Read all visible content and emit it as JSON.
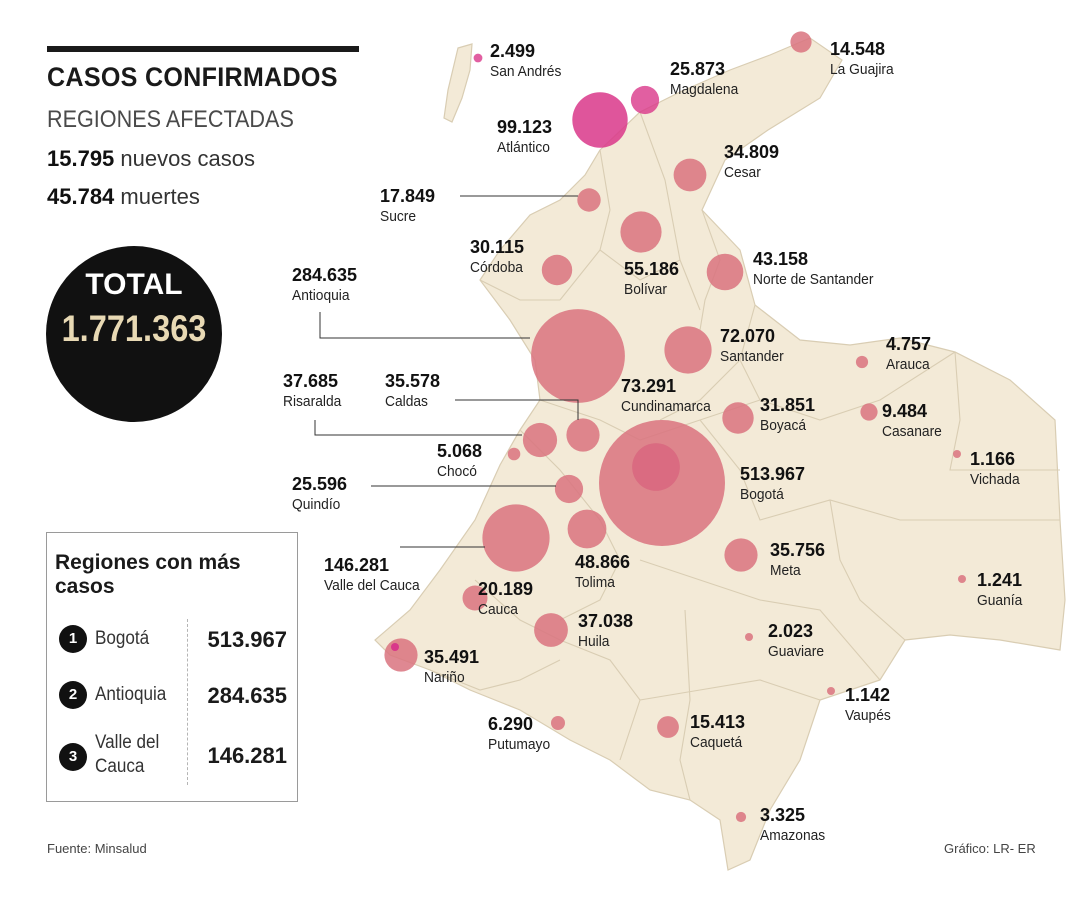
{
  "header": {
    "title": "CASOS CONFIRMADOS",
    "subtitle": "REGIONES AFECTADAS",
    "new_cases_value": "15.795",
    "new_cases_label": "nuevos casos",
    "deaths_value": "45.784",
    "deaths_label": "muertes"
  },
  "total": {
    "label": "TOTAL",
    "value": "1.771.363"
  },
  "top_regions": {
    "title": "Regiones con más casos",
    "items": [
      {
        "rank": "1",
        "name": "Bogotá",
        "value": "513.967"
      },
      {
        "rank": "2",
        "name": "Antioquia",
        "value": "284.635"
      },
      {
        "rank": "3",
        "name": "Valle del Cauca",
        "value": "146.281"
      }
    ]
  },
  "footer": {
    "source": "Fuente: Minsalud",
    "credit": "Gráfico: LR- ER"
  },
  "colors": {
    "land": "#f3ead7",
    "border": "#d9cdb3",
    "bubble": "#d9737f",
    "bubble_highlight": "#d9378a",
    "text": "#111111"
  },
  "chart_data": {
    "type": "bubble-map",
    "title": "CASOS CONFIRMADOS",
    "units": "casos confirmados",
    "regions": [
      {
        "name": "San Andrés",
        "value": "2.499",
        "cases": 2499
      },
      {
        "name": "La Guajira",
        "value": "14.548",
        "cases": 14548
      },
      {
        "name": "Magdalena",
        "value": "25.873",
        "cases": 25873
      },
      {
        "name": "Atlántico",
        "value": "99.123",
        "cases": 99123
      },
      {
        "name": "Cesar",
        "value": "34.809",
        "cases": 34809
      },
      {
        "name": "Sucre",
        "value": "17.849",
        "cases": 17849
      },
      {
        "name": "Córdoba",
        "value": "30.115",
        "cases": 30115
      },
      {
        "name": "Bolívar",
        "value": "55.186",
        "cases": 55186
      },
      {
        "name": "Norte de Santander",
        "value": "43.158",
        "cases": 43158
      },
      {
        "name": "Antioquia",
        "value": "284.635",
        "cases": 284635
      },
      {
        "name": "Santander",
        "value": "72.070",
        "cases": 72070
      },
      {
        "name": "Arauca",
        "value": "4.757",
        "cases": 4757
      },
      {
        "name": "Risaralda",
        "value": "37.685",
        "cases": 37685
      },
      {
        "name": "Caldas",
        "value": "35.578",
        "cases": 35578
      },
      {
        "name": "Cundinamarca",
        "value": "73.291",
        "cases": 73291
      },
      {
        "name": "Boyacá",
        "value": "31.851",
        "cases": 31851
      },
      {
        "name": "Casanare",
        "value": "9.484",
        "cases": 9484
      },
      {
        "name": "Chocó",
        "value": "5.068",
        "cases": 5068
      },
      {
        "name": "Vichada",
        "value": "1.166",
        "cases": 1166
      },
      {
        "name": "Quindío",
        "value": "25.596",
        "cases": 25596
      },
      {
        "name": "Bogotá",
        "value": "513.967",
        "cases": 513967
      },
      {
        "name": "Valle del Cauca",
        "value": "146.281",
        "cases": 146281
      },
      {
        "name": "Tolima",
        "value": "48.866",
        "cases": 48866
      },
      {
        "name": "Meta",
        "value": "35.756",
        "cases": 35756
      },
      {
        "name": "Guanía",
        "value": "1.241",
        "cases": 1241
      },
      {
        "name": "Cauca",
        "value": "20.189",
        "cases": 20189
      },
      {
        "name": "Huila",
        "value": "37.038",
        "cases": 37038
      },
      {
        "name": "Guaviare",
        "value": "2.023",
        "cases": 2023
      },
      {
        "name": "Nariño",
        "value": "35.491",
        "cases": 35491
      },
      {
        "name": "Vaupés",
        "value": "1.142",
        "cases": 1142
      },
      {
        "name": "Putumayo",
        "value": "6.290",
        "cases": 6290
      },
      {
        "name": "Caquetá",
        "value": "15.413",
        "cases": 15413
      },
      {
        "name": "Amazonas",
        "value": "3.325",
        "cases": 3325
      }
    ]
  }
}
